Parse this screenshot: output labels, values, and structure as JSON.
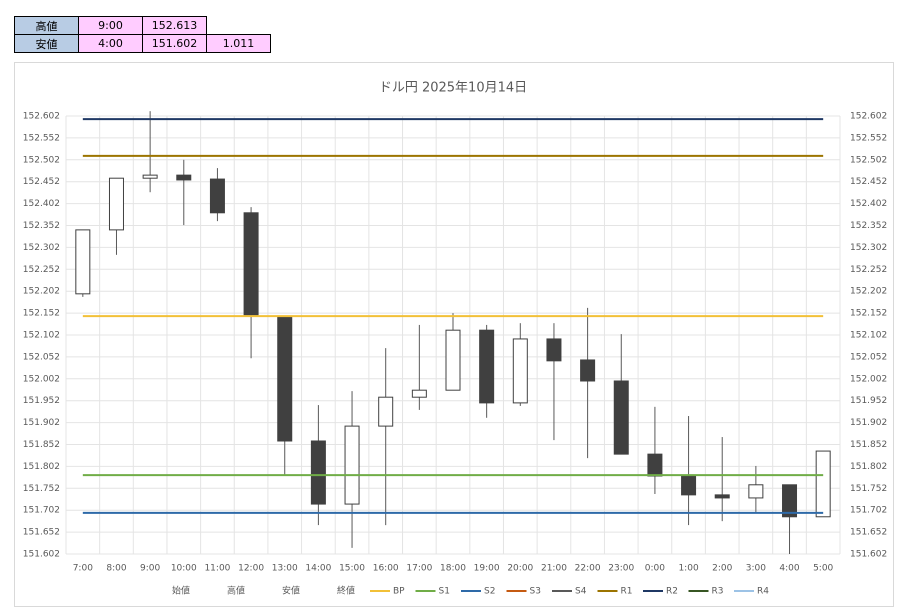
{
  "table": {
    "rows": [
      [
        "高値",
        "9:00",
        "152.613"
      ],
      [
        "安値",
        "4:00",
        "151.602",
        "1.011"
      ]
    ]
  },
  "chart_data": {
    "type": "candlestick",
    "title": "ドル円  2025年10月14日",
    "categories": [
      "7:00",
      "8:00",
      "9:00",
      "10:00",
      "11:00",
      "12:00",
      "13:00",
      "14:00",
      "15:00",
      "16:00",
      "17:00",
      "18:00",
      "19:00",
      "20:00",
      "21:00",
      "22:00",
      "23:00",
      "0:00",
      "1:00",
      "2:00",
      "3:00",
      "4:00",
      "5:00"
    ],
    "series": [
      {
        "name": "始値",
        "values": [
          152.196,
          152.342,
          152.46,
          152.467,
          152.458,
          152.381,
          152.143,
          151.86,
          151.716,
          151.894,
          151.96,
          151.976,
          152.113,
          151.947,
          152.093,
          152.045,
          151.997,
          151.83,
          151.78,
          151.737,
          151.73,
          151.76,
          151.687
        ]
      },
      {
        "name": "高値",
        "values": [
          152.342,
          152.46,
          152.613,
          152.502,
          152.483,
          152.394,
          152.143,
          151.942,
          151.974,
          152.072,
          152.125,
          152.152,
          152.125,
          152.129,
          152.129,
          152.164,
          152.104,
          151.938,
          151.917,
          151.869,
          151.803,
          151.76,
          151.837
        ]
      },
      {
        "name": "安値",
        "values": [
          152.189,
          152.285,
          152.428,
          152.353,
          152.362,
          152.049,
          151.782,
          151.668,
          151.616,
          151.668,
          151.931,
          151.976,
          151.913,
          151.94,
          151.862,
          151.821,
          151.83,
          151.739,
          151.668,
          151.677,
          151.698,
          151.602,
          151.687
        ]
      },
      {
        "name": "終値",
        "values": [
          152.342,
          152.46,
          152.467,
          152.456,
          152.381,
          152.148,
          151.86,
          151.716,
          151.894,
          151.96,
          151.976,
          152.113,
          151.947,
          152.093,
          152.043,
          151.997,
          151.83,
          151.78,
          151.737,
          151.73,
          151.76,
          151.687,
          151.837
        ]
      }
    ],
    "hlines": [
      {
        "name": "BP",
        "color": "#f2c037",
        "value": 152.145
      },
      {
        "name": "S1",
        "color": "#70ad47",
        "value": 151.782
      },
      {
        "name": "S2",
        "color": "#2e6aa8",
        "value": 151.696
      },
      {
        "name": "S3",
        "color": "#c55a11"
      },
      {
        "name": "S4",
        "color": "#595959"
      },
      {
        "name": "R1",
        "color": "#9c7400",
        "value": 152.511
      },
      {
        "name": "R2",
        "color": "#1f3864",
        "value": 152.595
      },
      {
        "name": "R3",
        "color": "#375623"
      },
      {
        "name": "R4",
        "color": "#9dc3e6"
      }
    ],
    "up_color": "#ffffff",
    "down_color": "#404040",
    "ylim": [
      151.602,
      152.602
    ],
    "yticks": [
      151.602,
      151.652,
      151.702,
      151.752,
      151.802,
      151.852,
      151.902,
      151.952,
      152.002,
      152.052,
      152.102,
      152.152,
      152.202,
      152.252,
      152.302,
      152.352,
      152.402,
      152.452,
      152.502,
      152.552,
      152.602
    ],
    "grid": true
  }
}
